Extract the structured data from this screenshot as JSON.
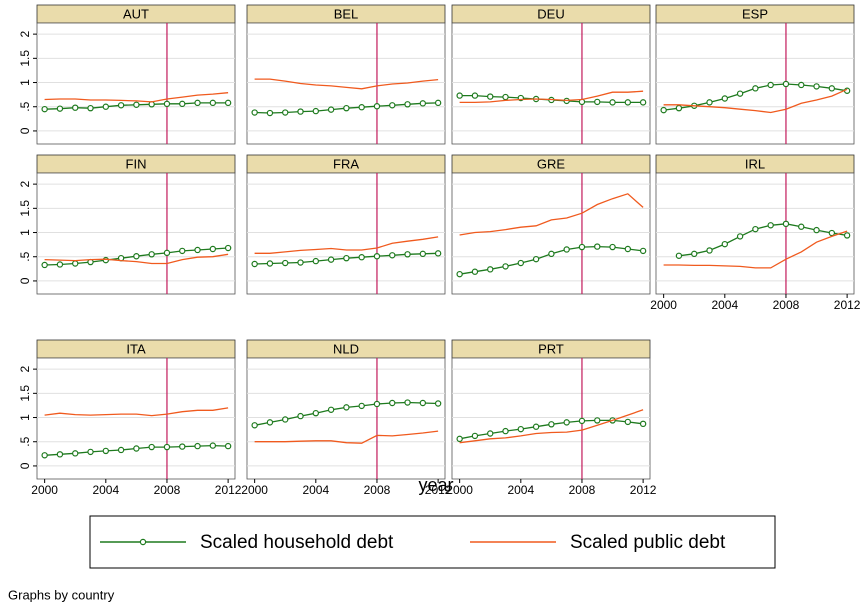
{
  "axes": {
    "xlim": [
      1999.5,
      2012.45
    ],
    "xticks": [
      2000,
      2004,
      2008,
      2012
    ],
    "ylim": [
      -0.27,
      2.23
    ],
    "yticks": [
      0,
      {
        "value": 0.5,
        "label": ".5"
      },
      1,
      1.5,
      2
    ],
    "xline": 2008,
    "xline_color": "#c2185b",
    "grid": true,
    "x_label": "year",
    "legend_position": "bottom",
    "marker_series": 0
  },
  "series_style": [
    {
      "name": "Scaled household debt",
      "color": "#1e7a1e"
    },
    {
      "name": "Scaled public debt",
      "color": "#f05a1e"
    }
  ],
  "note": "Graphs by country",
  "chart_data": [
    {
      "type": "line",
      "title": "AUT",
      "x": [
        2000,
        2001,
        2002,
        2003,
        2004,
        2005,
        2006,
        2007,
        2008,
        2009,
        2010,
        2011,
        2012
      ],
      "series": [
        {
          "values": [
            0.45,
            0.46,
            0.48,
            0.47,
            0.5,
            0.53,
            0.54,
            0.55,
            0.56,
            0.56,
            0.58,
            0.58,
            0.58
          ]
        },
        {
          "values": [
            0.65,
            0.66,
            0.66,
            0.64,
            0.64,
            0.63,
            0.62,
            0.6,
            0.66,
            0.7,
            0.74,
            0.76,
            0.79
          ]
        }
      ]
    },
    {
      "type": "line",
      "title": "BEL",
      "x": [
        2000,
        2001,
        2002,
        2003,
        2004,
        2005,
        2006,
        2007,
        2008,
        2009,
        2010,
        2011,
        2012
      ],
      "series": [
        {
          "values": [
            0.38,
            0.37,
            0.38,
            0.4,
            0.41,
            0.44,
            0.47,
            0.49,
            0.51,
            0.53,
            0.55,
            0.57,
            0.58
          ]
        },
        {
          "values": [
            1.07,
            1.07,
            1.03,
            0.98,
            0.95,
            0.93,
            0.9,
            0.87,
            0.93,
            0.97,
            0.99,
            1.03,
            1.06
          ]
        }
      ]
    },
    {
      "type": "line",
      "title": "DEU",
      "x": [
        2000,
        2001,
        2002,
        2003,
        2004,
        2005,
        2006,
        2007,
        2008,
        2009,
        2010,
        2011,
        2012
      ],
      "series": [
        {
          "values": [
            0.73,
            0.73,
            0.71,
            0.7,
            0.68,
            0.66,
            0.64,
            0.62,
            0.6,
            0.6,
            0.59,
            0.59,
            0.59
          ]
        },
        {
          "values": [
            0.59,
            0.59,
            0.6,
            0.63,
            0.65,
            0.66,
            0.65,
            0.63,
            0.65,
            0.72,
            0.8,
            0.8,
            0.82
          ]
        }
      ]
    },
    {
      "type": "line",
      "title": "ESP",
      "x": [
        2000,
        2001,
        2002,
        2003,
        2004,
        2005,
        2006,
        2007,
        2008,
        2009,
        2010,
        2011,
        2012
      ],
      "series": [
        {
          "values": [
            0.43,
            0.47,
            0.52,
            0.59,
            0.67,
            0.77,
            0.88,
            0.95,
            0.97,
            0.95,
            0.92,
            0.88,
            0.83
          ]
        },
        {
          "values": [
            0.54,
            0.54,
            0.52,
            0.5,
            0.48,
            0.45,
            0.42,
            0.38,
            0.45,
            0.57,
            0.64,
            0.72,
            0.86
          ]
        }
      ]
    },
    {
      "type": "line",
      "title": "FIN",
      "x": [
        2000,
        2001,
        2002,
        2003,
        2004,
        2005,
        2006,
        2007,
        2008,
        2009,
        2010,
        2011,
        2012
      ],
      "series": [
        {
          "values": [
            0.33,
            0.34,
            0.36,
            0.39,
            0.43,
            0.47,
            0.51,
            0.55,
            0.58,
            0.62,
            0.64,
            0.66,
            0.68
          ]
        },
        {
          "values": [
            0.44,
            0.43,
            0.42,
            0.44,
            0.45,
            0.42,
            0.4,
            0.36,
            0.36,
            0.44,
            0.49,
            0.5,
            0.55
          ]
        }
      ]
    },
    {
      "type": "line",
      "title": "FRA",
      "x": [
        2000,
        2001,
        2002,
        2003,
        2004,
        2005,
        2006,
        2007,
        2008,
        2009,
        2010,
        2011,
        2012
      ],
      "series": [
        {
          "values": [
            0.35,
            0.36,
            0.37,
            0.38,
            0.41,
            0.44,
            0.47,
            0.49,
            0.51,
            0.53,
            0.55,
            0.56,
            0.57
          ]
        },
        {
          "values": [
            0.57,
            0.57,
            0.6,
            0.63,
            0.65,
            0.67,
            0.64,
            0.64,
            0.68,
            0.78,
            0.82,
            0.86,
            0.91
          ]
        }
      ]
    },
    {
      "type": "line",
      "title": "GRE",
      "x": [
        2000,
        2001,
        2002,
        2003,
        2004,
        2005,
        2006,
        2007,
        2008,
        2009,
        2010,
        2011,
        2012
      ],
      "series": [
        {
          "values": [
            0.14,
            0.19,
            0.24,
            0.3,
            0.37,
            0.45,
            0.56,
            0.65,
            0.7,
            0.71,
            0.7,
            0.66,
            0.62
          ]
        },
        {
          "values": [
            0.95,
            1.0,
            1.02,
            1.06,
            1.11,
            1.14,
            1.26,
            1.3,
            1.4,
            1.58,
            1.7,
            1.8,
            1.52
          ]
        }
      ]
    },
    {
      "type": "line",
      "title": "IRL",
      "x": [
        2000,
        2001,
        2002,
        2003,
        2004,
        2005,
        2006,
        2007,
        2008,
        2009,
        2010,
        2011,
        2012
      ],
      "series": [
        {
          "values": [
            null,
            0.52,
            0.56,
            0.63,
            0.76,
            0.92,
            1.07,
            1.15,
            1.18,
            1.12,
            1.05,
            0.99,
            0.94
          ]
        },
        {
          "values": [
            0.33,
            0.33,
            0.32,
            0.32,
            0.31,
            0.3,
            0.27,
            0.27,
            0.45,
            0.6,
            0.8,
            0.92,
            1.03
          ]
        }
      ]
    },
    {
      "type": "line",
      "title": "ITA",
      "x": [
        2000,
        2001,
        2002,
        2003,
        2004,
        2005,
        2006,
        2007,
        2008,
        2009,
        2010,
        2011,
        2012
      ],
      "series": [
        {
          "values": [
            0.22,
            0.24,
            0.26,
            0.29,
            0.31,
            0.33,
            0.36,
            0.39,
            0.39,
            0.4,
            0.41,
            0.42,
            0.41
          ]
        },
        {
          "values": [
            1.05,
            1.09,
            1.06,
            1.05,
            1.06,
            1.07,
            1.07,
            1.04,
            1.07,
            1.12,
            1.15,
            1.15,
            1.2
          ]
        }
      ]
    },
    {
      "type": "line",
      "title": "NLD",
      "x": [
        2000,
        2001,
        2002,
        2003,
        2004,
        2005,
        2006,
        2007,
        2008,
        2009,
        2010,
        2011,
        2012
      ],
      "series": [
        {
          "values": [
            0.84,
            0.9,
            0.96,
            1.03,
            1.09,
            1.16,
            1.21,
            1.24,
            1.28,
            1.3,
            1.31,
            1.3,
            1.29
          ]
        },
        {
          "values": [
            0.5,
            0.5,
            0.5,
            0.51,
            0.52,
            0.52,
            0.48,
            0.47,
            0.63,
            0.62,
            0.65,
            0.68,
            0.72
          ]
        }
      ]
    },
    {
      "type": "line",
      "title": "PRT",
      "x": [
        2000,
        2001,
        2002,
        2003,
        2004,
        2005,
        2006,
        2007,
        2008,
        2009,
        2010,
        2011,
        2012
      ],
      "series": [
        {
          "values": [
            0.56,
            0.62,
            0.67,
            0.72,
            0.76,
            0.81,
            0.86,
            0.9,
            0.93,
            0.94,
            0.94,
            0.91,
            0.87
          ]
        },
        {
          "values": [
            0.48,
            0.52,
            0.56,
            0.58,
            0.62,
            0.67,
            0.69,
            0.7,
            0.74,
            0.84,
            0.94,
            1.05,
            1.16
          ]
        }
      ]
    }
  ]
}
